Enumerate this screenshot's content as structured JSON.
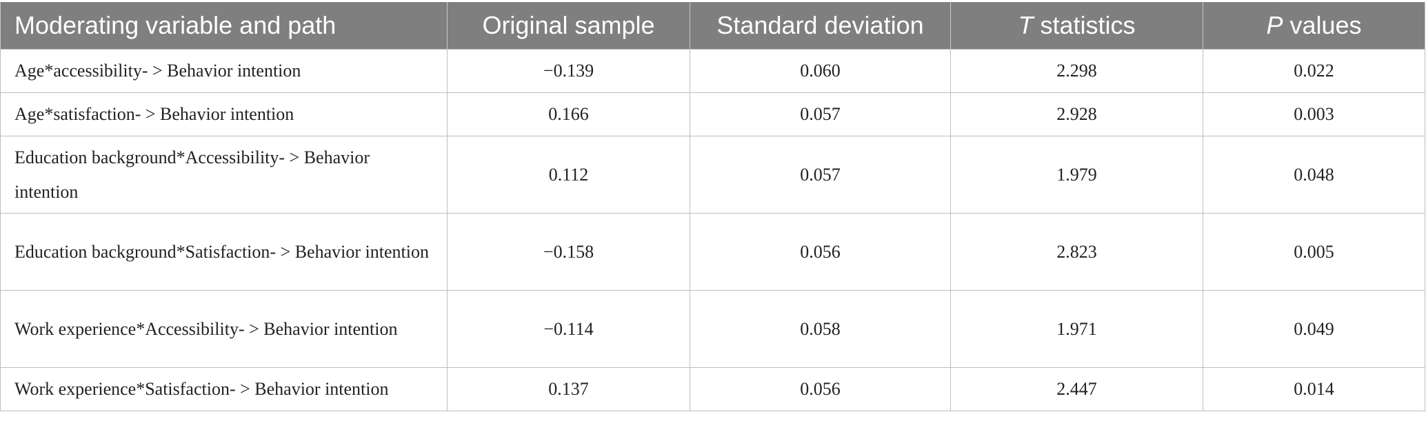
{
  "table": {
    "headers": {
      "path": "Moderating variable and path",
      "original_sample": "Original sample",
      "standard_deviation": "Standard deviation",
      "t_statistics_italic": "T",
      "t_statistics_rest": " statistics",
      "p_values_italic": "P",
      "p_values_rest": " values"
    },
    "rows": [
      {
        "path": "Age*accessibility- > Behavior intention",
        "original_sample": "−0.139",
        "standard_deviation": "0.060",
        "t_statistics": "2.298",
        "p_value": "0.022"
      },
      {
        "path": "Age*satisfaction- > Behavior intention",
        "original_sample": "0.166",
        "standard_deviation": "0.057",
        "t_statistics": "2.928",
        "p_value": "0.003"
      },
      {
        "path": "Education background*Accessibility- > Behavior intention",
        "original_sample": "0.112",
        "standard_deviation": "0.057",
        "t_statistics": "1.979",
        "p_value": "0.048"
      },
      {
        "path": "Education background*Satisfaction- > Behavior intention",
        "original_sample": "−0.158",
        "standard_deviation": "0.056",
        "t_statistics": "2.823",
        "p_value": "0.005"
      },
      {
        "path": "Work experience*Accessibility- > Behavior intention",
        "original_sample": "−0.114",
        "standard_deviation": "0.058",
        "t_statistics": "1.971",
        "p_value": "0.049"
      },
      {
        "path": "Work experience*Satisfaction- > Behavior intention",
        "original_sample": "0.137",
        "standard_deviation": "0.056",
        "t_statistics": "2.447",
        "p_value": "0.014"
      }
    ]
  }
}
